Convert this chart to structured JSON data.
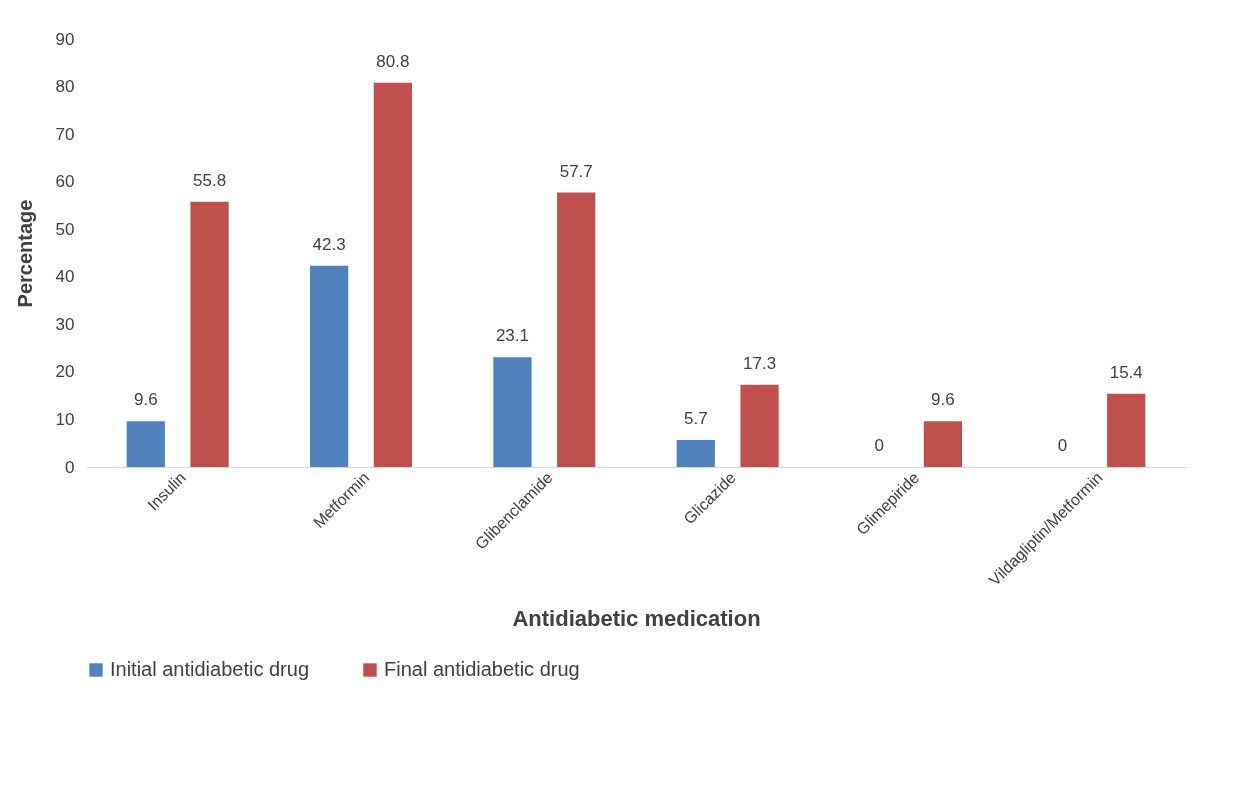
{
  "chart_data": {
    "type": "bar",
    "xlabel": "Antidiabetic medication",
    "ylabel": "Percentage",
    "categories": [
      "Insulin",
      "Metformin",
      "Glibenclamide",
      "Glicazide",
      "Glimepiride",
      "Vildagliptin/Metformin"
    ],
    "series": [
      {
        "name": "Initial antidiabetic drug",
        "color": "#4f81bd",
        "values": [
          9.6,
          42.3,
          23.1,
          5.7,
          0,
          0
        ]
      },
      {
        "name": "Final antidiabetic drug",
        "color": "#c0504d",
        "values": [
          55.8,
          80.8,
          57.7,
          17.3,
          9.6,
          15.4
        ]
      }
    ],
    "ylim": [
      0,
      90
    ],
    "yticks": [
      0,
      10,
      20,
      30,
      40,
      50,
      60,
      70,
      80,
      90
    ],
    "grid": false,
    "legend": "bottom",
    "data_labels": true
  }
}
